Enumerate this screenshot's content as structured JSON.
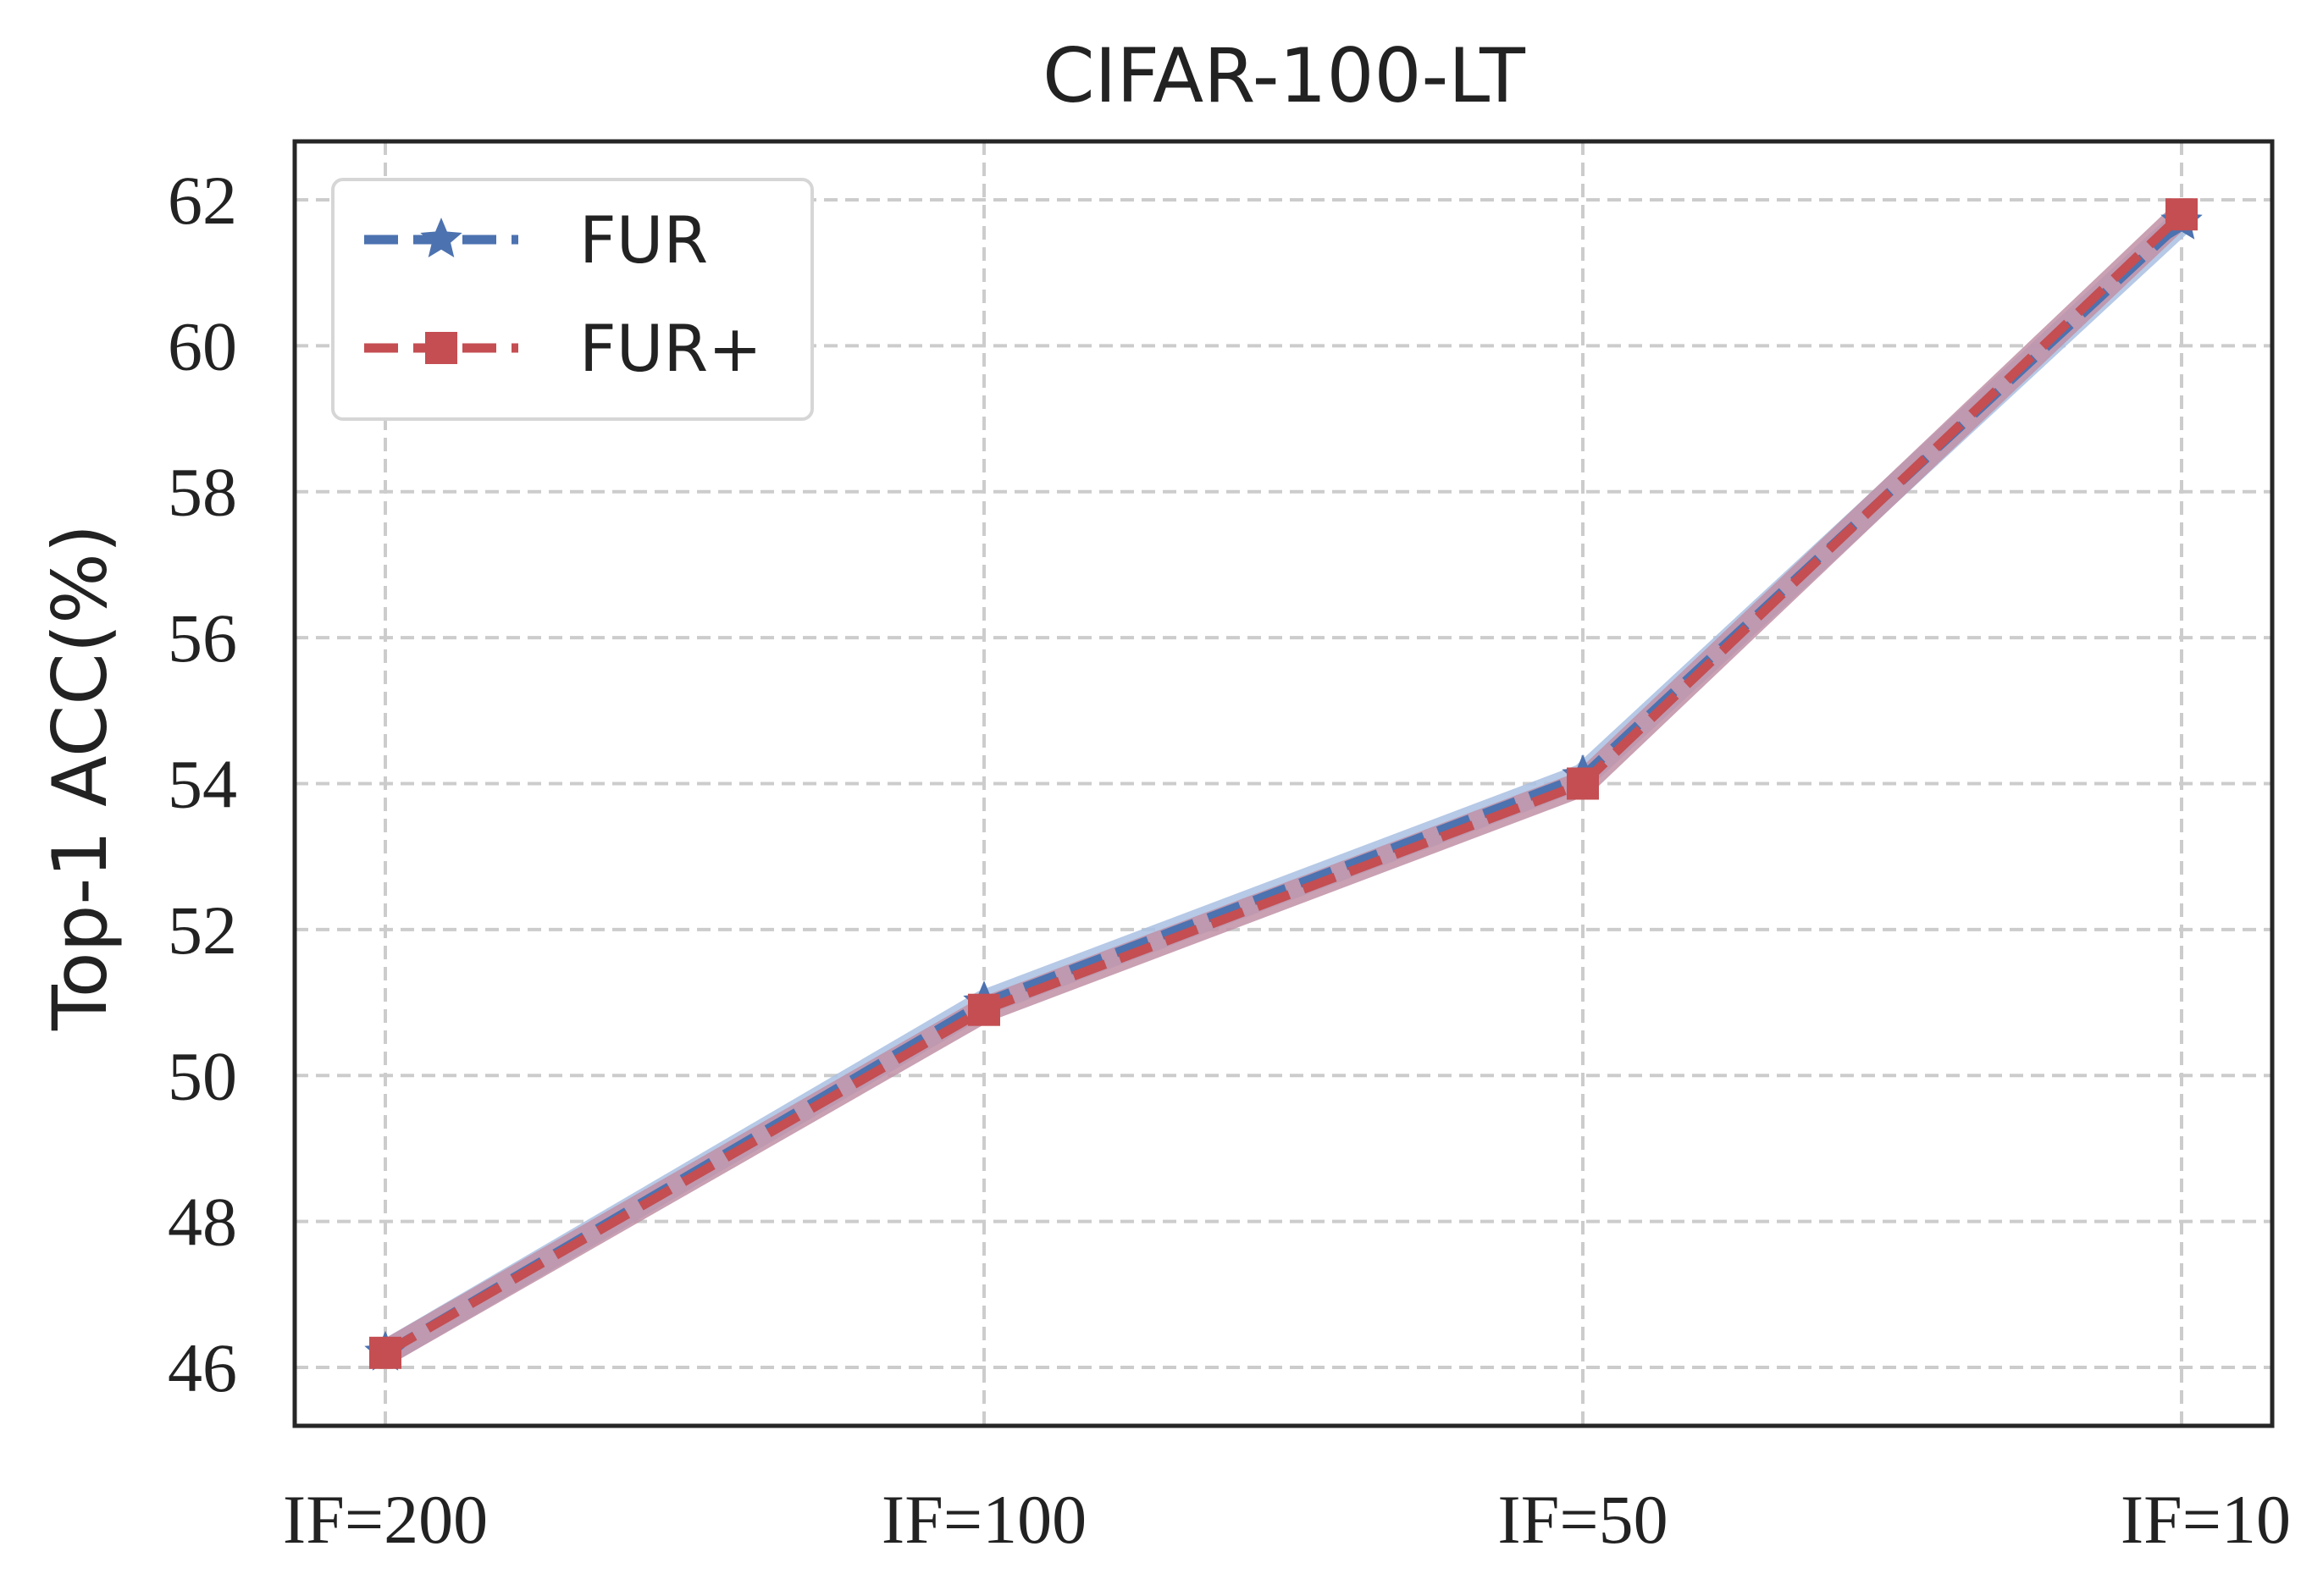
{
  "chart_data": {
    "type": "line",
    "title": "CIFAR-100-LT",
    "xlabel": "",
    "ylabel": "Top-1 ACC(%)",
    "categories": [
      "IF=200",
      "IF=100",
      "IF=50",
      "IF=10"
    ],
    "yticks": [
      46,
      48,
      50,
      52,
      54,
      56,
      58,
      60,
      62
    ],
    "ylim": [
      45.2,
      62.8
    ],
    "grid": true,
    "legend_position": "top-left",
    "series": [
      {
        "name": "FUR",
        "values": [
          46.2,
          51.0,
          54.1,
          61.7
        ],
        "color": "#4c72b0",
        "band_color": "#a9bfe2",
        "marker": "star",
        "linestyle": "dashed"
      },
      {
        "name": "FUR+",
        "values": [
          46.2,
          50.9,
          54.0,
          61.8
        ],
        "color": "#c44e52",
        "band_color": "#c090a6",
        "marker": "square",
        "linestyle": "dashed"
      }
    ]
  }
}
